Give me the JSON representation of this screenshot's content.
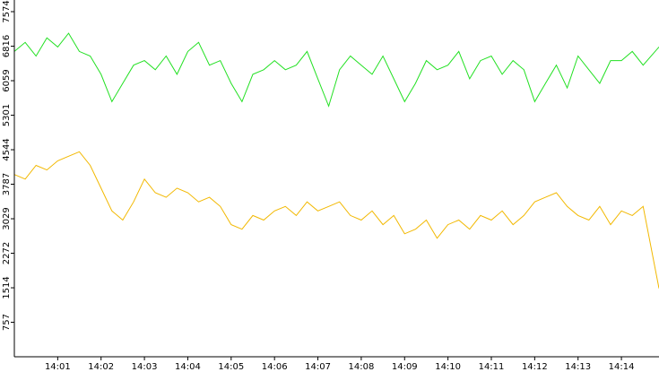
{
  "chart_data": {
    "type": "line",
    "x": [
      "14:00:00",
      "14:00:15",
      "14:00:30",
      "14:00:45",
      "14:01:00",
      "14:01:15",
      "14:01:30",
      "14:01:45",
      "14:02:00",
      "14:02:15",
      "14:02:30",
      "14:02:45",
      "14:03:00",
      "14:03:15",
      "14:03:30",
      "14:03:45",
      "14:04:00",
      "14:04:15",
      "14:04:30",
      "14:04:45",
      "14:05:00",
      "14:05:15",
      "14:05:30",
      "14:05:45",
      "14:06:00",
      "14:06:15",
      "14:06:30",
      "14:06:45",
      "14:07:00",
      "14:07:15",
      "14:07:30",
      "14:07:45",
      "14:08:00",
      "14:08:15",
      "14:08:30",
      "14:08:45",
      "14:09:00",
      "14:09:15",
      "14:09:30",
      "14:09:45",
      "14:10:00",
      "14:10:15",
      "14:10:30",
      "14:10:45",
      "14:11:00",
      "14:11:15",
      "14:11:30",
      "14:11:45",
      "14:12:00",
      "14:12:15",
      "14:12:30",
      "14:12:45",
      "14:13:00",
      "14:13:15",
      "14:13:30",
      "14:13:45",
      "14:14:00",
      "14:14:15",
      "14:14:30",
      "14:14:52"
    ],
    "series": [
      {
        "color": "#22e022",
        "values": [
          6700,
          6900,
          6600,
          7000,
          6800,
          7100,
          6700,
          6600,
          6200,
          5600,
          6000,
          6400,
          6500,
          6300,
          6600,
          6200,
          6700,
          6900,
          6400,
          6500,
          6000,
          5600,
          6200,
          6300,
          6500,
          6300,
          6400,
          6700,
          6100,
          5500,
          6300,
          6600,
          6400,
          6200,
          6600,
          6100,
          5600,
          6000,
          6500,
          6300,
          6400,
          6700,
          6100,
          6500,
          6600,
          6200,
          6500,
          6300,
          5600,
          6000,
          6400,
          5900,
          6600,
          6300,
          6000,
          6500,
          6500,
          6700,
          6400,
          6800
        ]
      },
      {
        "color": "#f2b800",
        "values": [
          4000,
          3900,
          4200,
          4100,
          4300,
          4400,
          4500,
          4200,
          3700,
          3200,
          3000,
          3400,
          3900,
          3600,
          3500,
          3700,
          3600,
          3400,
          3500,
          3300,
          2900,
          2800,
          3100,
          3000,
          3200,
          3300,
          3100,
          3400,
          3200,
          3300,
          3400,
          3100,
          3000,
          3200,
          2900,
          3100,
          2700,
          2800,
          3000,
          2600,
          2900,
          3000,
          2800,
          3100,
          3000,
          3200,
          2900,
          3100,
          3400,
          3500,
          3600,
          3300,
          3100,
          3000,
          3300,
          2900,
          3200,
          3100,
          3300,
          1500
        ]
      }
    ],
    "xlim": [
      "14:00:00",
      "14:14:52"
    ],
    "xticks": [
      "14:01",
      "14:02",
      "14:03",
      "14:04",
      "14:05",
      "14:06",
      "14:07",
      "14:08",
      "14:09",
      "14:10",
      "14:11",
      "14:12",
      "14:13",
      "14:14"
    ],
    "ylim": [
      0,
      7830
    ],
    "yticks": [
      757,
      1514,
      2272,
      3029,
      3787,
      4544,
      5301,
      6059,
      6816,
      7574
    ]
  }
}
